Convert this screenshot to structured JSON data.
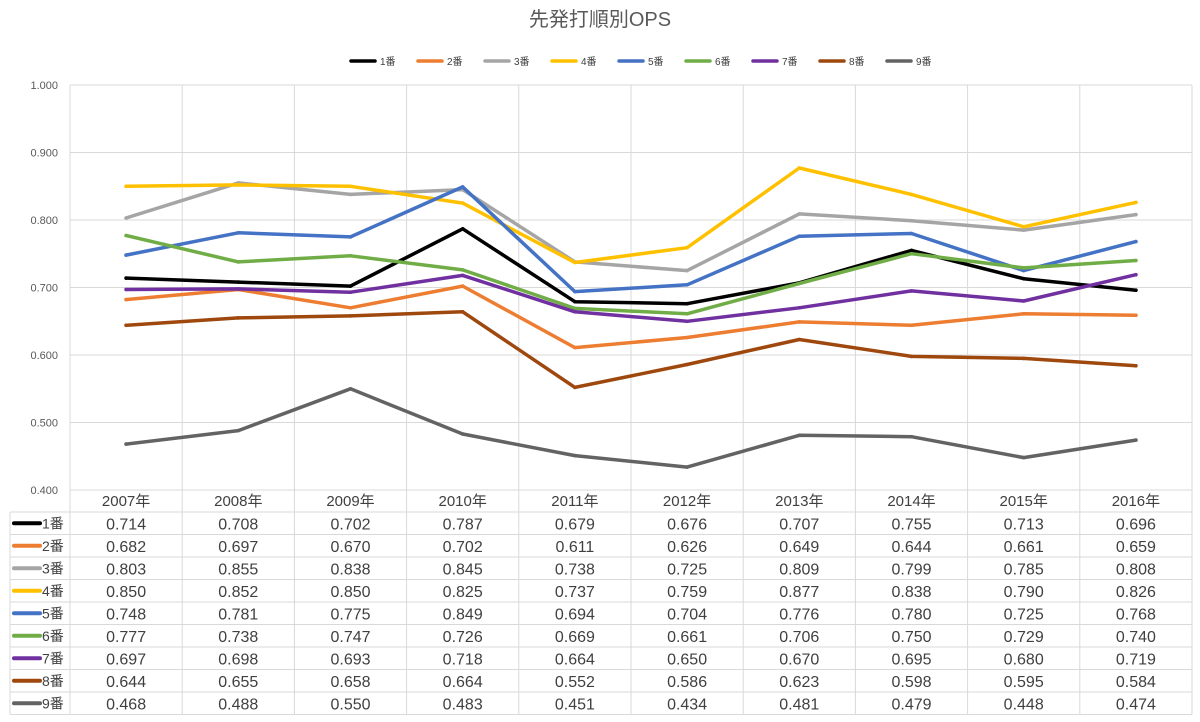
{
  "chart_data": {
    "type": "line",
    "title": "先発打順別OPS",
    "xlabel": "",
    "ylabel": "",
    "ylim": [
      0.4,
      1.0
    ],
    "y_ticks": [
      "0.400",
      "0.500",
      "0.600",
      "0.700",
      "0.800",
      "0.900",
      "1.000"
    ],
    "grid": true,
    "legend_position": "top",
    "categories": [
      "2007年",
      "2008年",
      "2009年",
      "2010年",
      "2011年",
      "2012年",
      "2013年",
      "2014年",
      "2015年",
      "2016年"
    ],
    "series": [
      {
        "name": "1番",
        "color": "#000000",
        "values": [
          0.714,
          0.708,
          0.702,
          0.787,
          0.679,
          0.676,
          0.707,
          0.755,
          0.713,
          0.696
        ],
        "labels": [
          "0.714",
          "0.708",
          "0.702",
          "0.787",
          "0.679",
          "0.676",
          "0.707",
          "0.755",
          "0.713",
          "0.696"
        ]
      },
      {
        "name": "2番",
        "color": "#ED7D31",
        "values": [
          0.682,
          0.697,
          0.67,
          0.702,
          0.611,
          0.626,
          0.649,
          0.644,
          0.661,
          0.659
        ],
        "labels": [
          "0.682",
          "0.697",
          "0.670",
          "0.702",
          "0.611",
          "0.626",
          "0.649",
          "0.644",
          "0.661",
          "0.659"
        ]
      },
      {
        "name": "3番",
        "color": "#A5A5A5",
        "values": [
          0.803,
          0.855,
          0.838,
          0.845,
          0.738,
          0.725,
          0.809,
          0.799,
          0.785,
          0.808
        ],
        "labels": [
          "0.803",
          "0.855",
          "0.838",
          "0.845",
          "0.738",
          "0.725",
          "0.809",
          "0.799",
          "0.785",
          "0.808"
        ]
      },
      {
        "name": "4番",
        "color": "#FFC000",
        "values": [
          0.85,
          0.852,
          0.85,
          0.825,
          0.737,
          0.759,
          0.877,
          0.838,
          0.79,
          0.826
        ],
        "labels": [
          "0.850",
          "0.852",
          "0.850",
          "0.825",
          "0.737",
          "0.759",
          "0.877",
          "0.838",
          "0.790",
          "0.826"
        ]
      },
      {
        "name": "5番",
        "color": "#4472C4",
        "values": [
          0.748,
          0.781,
          0.775,
          0.849,
          0.694,
          0.704,
          0.776,
          0.78,
          0.725,
          0.768
        ],
        "labels": [
          "0.748",
          "0.781",
          "0.775",
          "0.849",
          "0.694",
          "0.704",
          "0.776",
          "0.780",
          "0.725",
          "0.768"
        ]
      },
      {
        "name": "6番",
        "color": "#70AD47",
        "values": [
          0.777,
          0.738,
          0.747,
          0.726,
          0.669,
          0.661,
          0.706,
          0.75,
          0.729,
          0.74
        ],
        "labels": [
          "0.777",
          "0.738",
          "0.747",
          "0.726",
          "0.669",
          "0.661",
          "0.706",
          "0.750",
          "0.729",
          "0.740"
        ]
      },
      {
        "name": "7番",
        "color": "#7030A0",
        "values": [
          0.697,
          0.698,
          0.693,
          0.718,
          0.664,
          0.65,
          0.67,
          0.695,
          0.68,
          0.719
        ],
        "labels": [
          "0.697",
          "0.698",
          "0.693",
          "0.718",
          "0.664",
          "0.650",
          "0.670",
          "0.695",
          "0.680",
          "0.719"
        ]
      },
      {
        "name": "8番",
        "color": "#9E480E",
        "values": [
          0.644,
          0.655,
          0.658,
          0.664,
          0.552,
          0.586,
          0.623,
          0.598,
          0.595,
          0.584
        ],
        "labels": [
          "0.644",
          "0.655",
          "0.658",
          "0.664",
          "0.552",
          "0.586",
          "0.623",
          "0.598",
          "0.595",
          "0.584"
        ]
      },
      {
        "name": "9番",
        "color": "#636363",
        "values": [
          0.468,
          0.488,
          0.55,
          0.483,
          0.451,
          0.434,
          0.481,
          0.479,
          0.448,
          0.474
        ],
        "labels": [
          "0.468",
          "0.488",
          "0.550",
          "0.483",
          "0.451",
          "0.434",
          "0.481",
          "0.479",
          "0.448",
          "0.474"
        ]
      }
    ]
  }
}
